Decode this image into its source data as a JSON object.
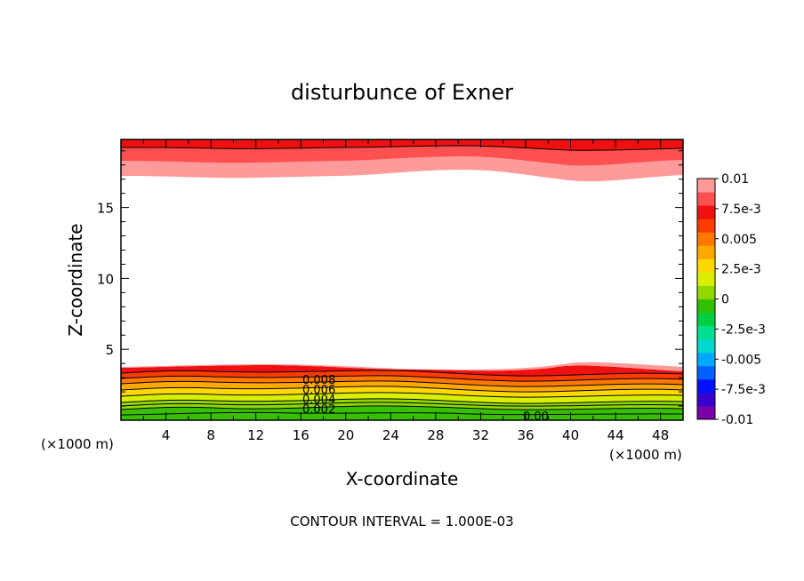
{
  "chart_data": {
    "type": "contour",
    "title": "disturbunce of Exner",
    "xlabel": "X-coordinate",
    "ylabel": "Z-coordinate",
    "x_unit_left": "(×1000 m)",
    "x_unit_right": "(×1000 m)",
    "xlim": [
      0,
      50
    ],
    "ylim": [
      0,
      19.8
    ],
    "xticks": [
      4,
      8,
      12,
      16,
      20,
      24,
      28,
      32,
      36,
      40,
      44,
      48
    ],
    "yticks": [
      5,
      10,
      15
    ],
    "colorbar": {
      "labels": [
        "0.01",
        "7.5e-3",
        "0.005",
        "2.5e-3",
        "0",
        "-2.5e-3",
        "-0.005",
        "-7.5e-3",
        "-0.01"
      ],
      "min": -0.01,
      "max": 0.01,
      "colors": [
        "#7a00a8",
        "#3a00d0",
        "#0010ff",
        "#0060ff",
        "#00a8ff",
        "#00d8d0",
        "#00e090",
        "#00d040",
        "#30c000",
        "#90d800",
        "#d8f000",
        "#ffd800",
        "#ffa800",
        "#ff7800",
        "#ff3c00",
        "#f01010",
        "#ff5050",
        "#ff9a9a"
      ]
    },
    "contour_labels": [
      "0.008",
      "0.006",
      "0.004",
      "0.002",
      "0.00"
    ],
    "contour_interval": "CONTOUR INTERVAL = 1.000E-03",
    "lower_layer_boundary_z": [
      3.7,
      3.6,
      3.9,
      3.7,
      3.4,
      3.5,
      3.9,
      3.6
    ],
    "upper_layer_boundary_z": [
      17.3,
      17.1,
      17.4,
      17.8,
      17.2,
      17.0,
      17.4,
      17.3
    ],
    "boundary_x": [
      0,
      6,
      12,
      20,
      28,
      36,
      42,
      50
    ]
  }
}
